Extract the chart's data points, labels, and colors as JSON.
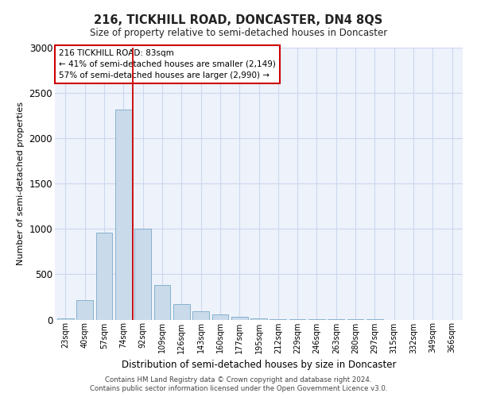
{
  "title": "216, TICKHILL ROAD, DONCASTER, DN4 8QS",
  "subtitle": "Size of property relative to semi-detached houses in Doncaster",
  "xlabel": "Distribution of semi-detached houses by size in Doncaster",
  "ylabel": "Number of semi-detached properties",
  "bar_color": "#c9daea",
  "bar_edge_color": "#7aaac8",
  "grid_color": "#ccd8ee",
  "background_color": "#edf2fb",
  "annotation_line_color": "#cc0000",
  "annotation_box_color": "#ffffff",
  "annotation_box_edge": "#cc0000",
  "property_label": "216 TICKHILL ROAD: 83sqm",
  "smaller_pct": 41,
  "smaller_count": 2149,
  "larger_pct": 57,
  "larger_count": 2990,
  "categories": [
    "23sqm",
    "40sqm",
    "57sqm",
    "74sqm",
    "92sqm",
    "109sqm",
    "126sqm",
    "143sqm",
    "160sqm",
    "177sqm",
    "195sqm",
    "212sqm",
    "229sqm",
    "246sqm",
    "263sqm",
    "280sqm",
    "297sqm",
    "315sqm",
    "332sqm",
    "349sqm",
    "366sqm"
  ],
  "values": [
    10,
    215,
    960,
    2320,
    1000,
    380,
    175,
    90,
    55,
    30,
    15,
    8,
    5,
    3,
    2,
    1,
    1,
    0,
    0,
    0,
    0
  ],
  "ylim": [
    0,
    3000
  ],
  "yticks": [
    0,
    500,
    1000,
    1500,
    2000,
    2500,
    3000
  ],
  "red_line_x": 3.5,
  "footer_line1": "Contains HM Land Registry data © Crown copyright and database right 2024.",
  "footer_line2": "Contains public sector information licensed under the Open Government Licence v3.0."
}
